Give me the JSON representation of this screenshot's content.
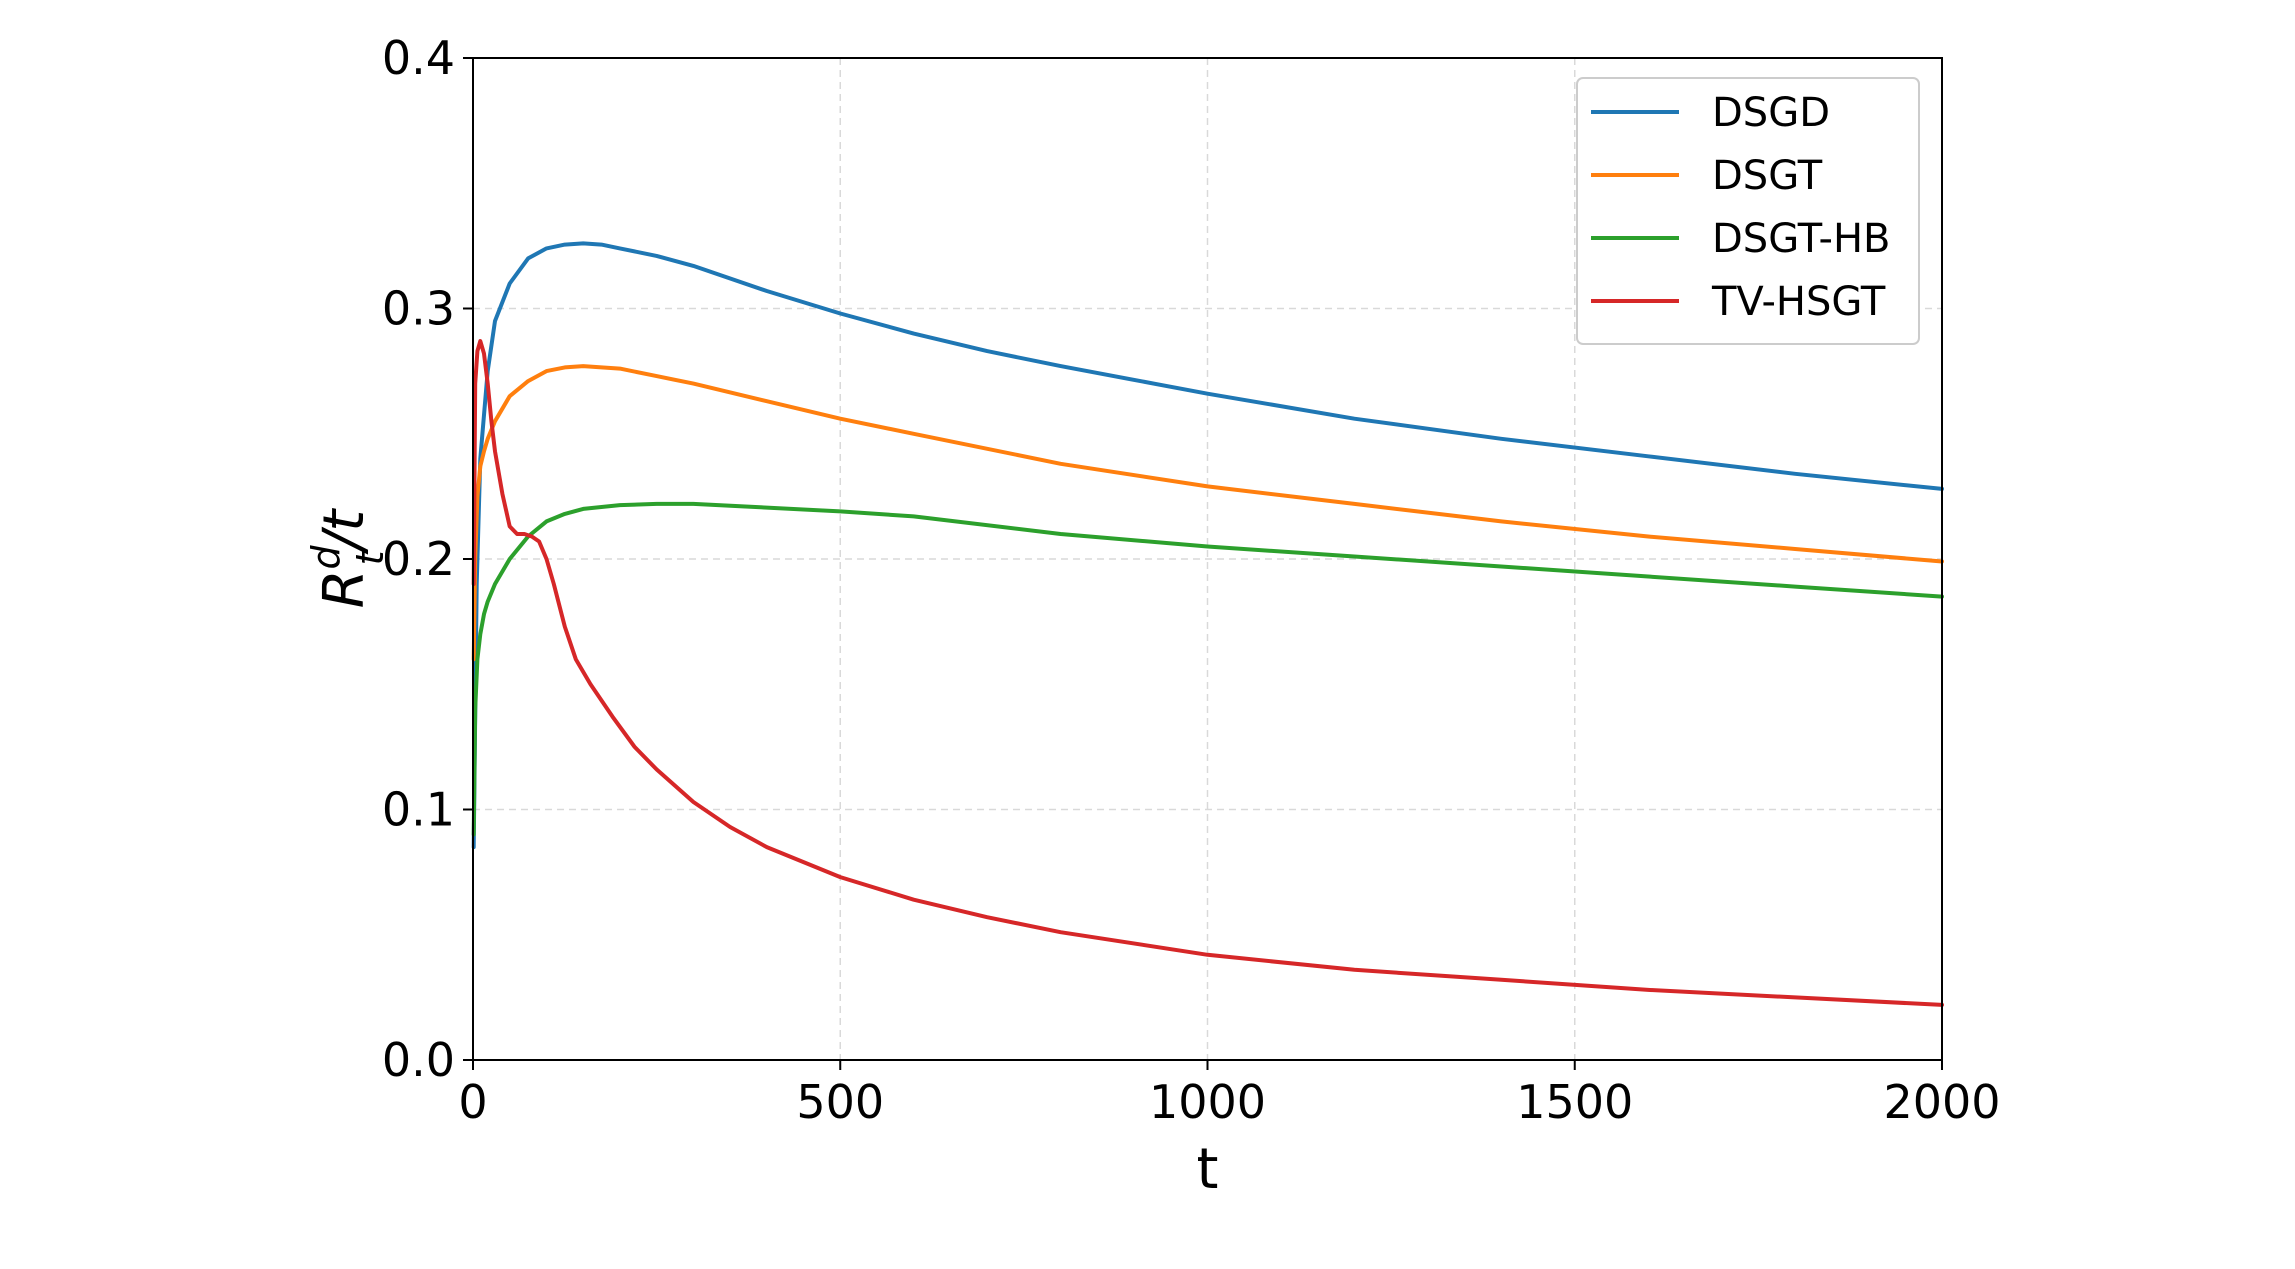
{
  "chart_data": {
    "type": "line",
    "xlabel": "t",
    "ylabel_base": "R",
    "ylabel_sup": "d",
    "ylabel_sub": "t",
    "ylabel_tail": "/t",
    "xlim": [
      0,
      2000
    ],
    "ylim": [
      0.0,
      0.4
    ],
    "xticks": [
      "0",
      "500",
      "1000",
      "1500",
      "2000"
    ],
    "yticks": [
      "0.0",
      "0.1",
      "0.2",
      "0.3",
      "0.4"
    ],
    "grid": true,
    "legend_position": "top-right",
    "series": [
      {
        "name": "DSGD",
        "color": "#1f77b4",
        "x": [
          1,
          5,
          10,
          20,
          30,
          50,
          75,
          100,
          125,
          150,
          175,
          200,
          250,
          300,
          400,
          500,
          600,
          700,
          800,
          1000,
          1200,
          1400,
          1600,
          1800,
          2000
        ],
        "y": [
          0.085,
          0.19,
          0.24,
          0.275,
          0.295,
          0.31,
          0.32,
          0.324,
          0.3255,
          0.326,
          0.3255,
          0.324,
          0.321,
          0.317,
          0.307,
          0.298,
          0.29,
          0.283,
          0.277,
          0.266,
          0.256,
          0.248,
          0.241,
          0.234,
          0.228
        ]
      },
      {
        "name": "DSGT",
        "color": "#ff7f0e",
        "x": [
          1,
          3,
          6,
          10,
          15,
          20,
          30,
          50,
          75,
          100,
          125,
          150,
          175,
          200,
          250,
          300,
          400,
          500,
          600,
          800,
          1000,
          1200,
          1400,
          1600,
          1800,
          2000
        ],
        "y": [
          0.16,
          0.2,
          0.225,
          0.237,
          0.243,
          0.248,
          0.255,
          0.265,
          0.271,
          0.275,
          0.2765,
          0.277,
          0.2765,
          0.276,
          0.273,
          0.27,
          0.263,
          0.256,
          0.25,
          0.238,
          0.229,
          0.222,
          0.215,
          0.209,
          0.204,
          0.199
        ]
      },
      {
        "name": "DSGT-HB",
        "color": "#2ca02c",
        "x": [
          1,
          3,
          6,
          10,
          15,
          20,
          30,
          50,
          75,
          100,
          125,
          150,
          200,
          250,
          300,
          400,
          500,
          600,
          800,
          1000,
          1200,
          1400,
          1600,
          1800,
          2000
        ],
        "y": [
          0.09,
          0.14,
          0.16,
          0.17,
          0.178,
          0.183,
          0.19,
          0.2,
          0.209,
          0.215,
          0.218,
          0.22,
          0.2215,
          0.222,
          0.222,
          0.2205,
          0.219,
          0.217,
          0.21,
          0.205,
          0.201,
          0.197,
          0.193,
          0.189,
          0.185
        ]
      },
      {
        "name": "TV-HSGT",
        "color": "#d62728",
        "x": [
          1,
          3,
          6,
          10,
          15,
          20,
          25,
          30,
          40,
          50,
          60,
          70,
          80,
          90,
          100,
          110,
          125,
          140,
          160,
          190,
          220,
          250,
          300,
          350,
          400,
          500,
          600,
          700,
          800,
          1000,
          1200,
          1400,
          1600,
          1800,
          2000
        ],
        "y": [
          0.19,
          0.27,
          0.283,
          0.287,
          0.282,
          0.27,
          0.255,
          0.243,
          0.226,
          0.213,
          0.21,
          0.21,
          0.209,
          0.207,
          0.2,
          0.19,
          0.173,
          0.16,
          0.15,
          0.137,
          0.125,
          0.116,
          0.103,
          0.093,
          0.085,
          0.073,
          0.064,
          0.057,
          0.051,
          0.042,
          0.036,
          0.032,
          0.028,
          0.025,
          0.022
        ]
      }
    ]
  }
}
